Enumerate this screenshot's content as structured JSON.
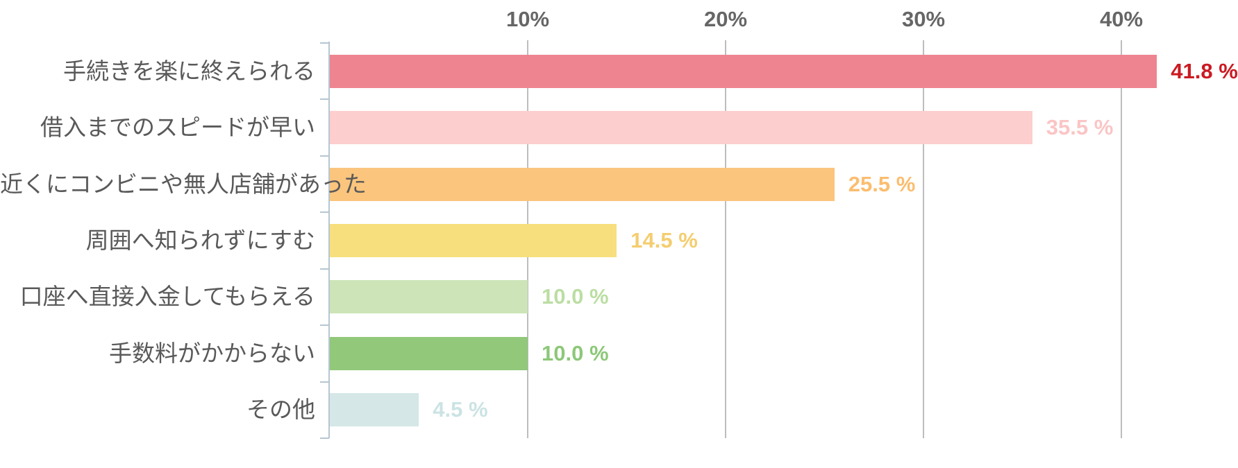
{
  "chart_data": {
    "type": "bar",
    "orientation": "horizontal",
    "title": "",
    "xlabel": "",
    "ylabel": "",
    "categories": [
      "手続きを楽に終えられる",
      "借入までのスピードが早い",
      "近くにコンビニや無人店舗があった",
      "周囲へ知られずにすむ",
      "口座へ直接入金してもらえる",
      "手数料がかからない",
      "その他"
    ],
    "values": [
      41.8,
      35.5,
      25.5,
      14.5,
      10.0,
      10.0,
      4.5
    ],
    "value_labels": [
      "41.8 %",
      "35.5 %",
      "25.5 %",
      "14.5 %",
      "10.0 %",
      "10.0 %",
      "4.5 %"
    ],
    "bar_colors": [
      "#ee8490",
      "#fccece",
      "#fbc57d",
      "#f7df7e",
      "#cce4b7",
      "#91c87a",
      "#d5e7e7"
    ],
    "value_label_colors": [
      "#cb1a22",
      "#fbc5c5",
      "#fbbd6f",
      "#f4cd6f",
      "#bbdea3",
      "#8cc878",
      "#cce3e4"
    ],
    "x_ticks": [
      "10%",
      "20%",
      "30%",
      "40%"
    ],
    "x_tick_values": [
      10,
      20,
      30,
      40
    ],
    "xlim": [
      0,
      45
    ],
    "grid": "vertical-gridlines-at-ticks",
    "legend": "none",
    "axis_color": "#b6c6d2",
    "grid_color": "#bdbdbd",
    "tick_label_color": "#666666",
    "category_label_color": "#595959",
    "background_color": "#ffffff"
  }
}
